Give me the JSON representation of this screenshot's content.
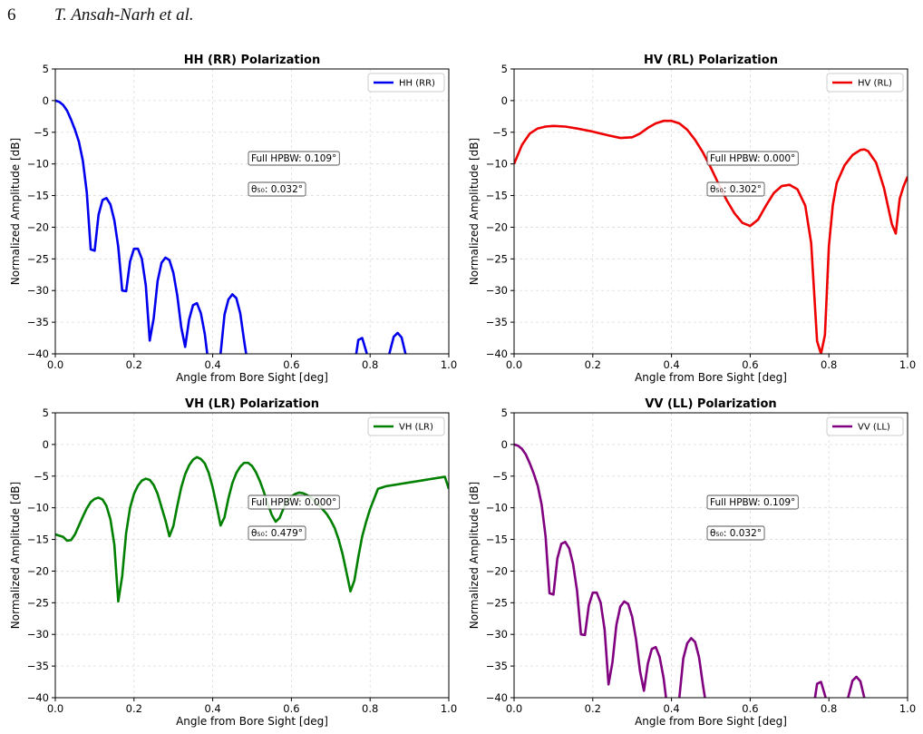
{
  "header": {
    "page_number": "6",
    "authors": "T. Ansah-Narh et al."
  },
  "chart_data": [
    {
      "type": "line",
      "title": "HH (RR) Polarization",
      "xlabel": "Angle from Bore Sight [deg]",
      "ylabel": "Normalized Amplitude [dB]",
      "xlim": [
        0,
        1
      ],
      "ylim": [
        -40,
        5
      ],
      "x_ticks": [
        "0.0",
        "0.2",
        "0.4",
        "0.6",
        "0.8",
        "1.0"
      ],
      "y_ticks": [
        "5",
        "0",
        "−5",
        "−10",
        "−15",
        "−20",
        "−25",
        "−30",
        "−35",
        "−40"
      ],
      "grid": true,
      "legend_position": "top-right",
      "color": "#0000ee",
      "annotations": [
        "Full HPBW: 0.109°",
        "θ₅₀: 0.032°"
      ],
      "series": [
        {
          "name": "HH (RR)",
          "x": [
            0,
            0.01,
            0.02,
            0.03,
            0.04,
            0.05,
            0.06,
            0.07,
            0.08,
            0.09,
            0.1,
            0.11,
            0.12,
            0.13,
            0.14,
            0.15,
            0.16,
            0.17,
            0.18,
            0.19,
            0.2,
            0.21,
            0.22,
            0.23,
            0.24,
            0.25,
            0.26,
            0.27,
            0.28,
            0.29,
            0.3,
            0.31,
            0.32,
            0.33,
            0.34,
            0.35,
            0.36,
            0.37,
            0.38,
            0.39,
            0.4,
            0.41,
            0.42,
            0.43,
            0.44,
            0.45,
            0.46,
            0.47,
            0.48,
            0.49,
            0.5,
            0.51,
            0.52,
            0.53,
            0.54,
            0.55,
            0.56,
            0.57,
            0.58,
            0.59,
            0.6,
            0.61,
            0.62,
            0.63,
            0.64,
            0.65,
            0.66,
            0.67,
            0.68,
            0.69,
            0.7,
            0.71,
            0.72,
            0.73,
            0.74,
            0.75,
            0.76,
            0.77,
            0.78,
            0.79,
            0.8,
            0.81,
            0.82,
            0.83,
            0.84,
            0.85,
            0.86,
            0.87,
            0.88,
            0.89
          ],
          "y": [
            0,
            -0.2,
            -0.7,
            -1.6,
            -3.0,
            -4.6,
            -6.5,
            -9.5,
            -14.5,
            -23.5,
            -23.7,
            -18.0,
            -15.7,
            -15.4,
            -16.4,
            -18.9,
            -23.1,
            -30.0,
            -30.1,
            -25.4,
            -23.4,
            -23.4,
            -25.0,
            -29.2,
            -37.9,
            -34.4,
            -28.5,
            -25.6,
            -24.8,
            -25.2,
            -27.2,
            -30.8,
            -35.8,
            -38.9,
            -34.6,
            -32.3,
            -32.0,
            -33.6,
            -36.9,
            -42.0,
            -42.0,
            -42.0,
            -40.0,
            -33.8,
            -31.4,
            -30.6,
            -31.2,
            -33.6,
            -38.0,
            -42.0,
            -42.0,
            -42.0,
            -42.0,
            -42.0,
            -42.0,
            -42.0,
            -42.0,
            -42.0,
            -42.0,
            -42.0,
            -42.0,
            -42.0,
            -42.0,
            -42.0,
            -42.0,
            -42.0,
            -42.0,
            -42.0,
            -42.0,
            -42.0,
            -42.0,
            -42.0,
            -42.0,
            -42.0,
            -42.0,
            -42.0,
            -42.0,
            -37.8,
            -37.5,
            -39.6,
            -42.0,
            -42.0,
            -42.0,
            -42.0,
            -42.0,
            -39.7,
            -37.3,
            -36.7,
            -37.4,
            -40.0
          ]
        }
      ]
    },
    {
      "type": "line",
      "title": "HV (RL) Polarization",
      "xlabel": "Angle from Bore Sight [deg]",
      "ylabel": "Normalized Amplitude [dB]",
      "xlim": [
        0,
        1
      ],
      "ylim": [
        -40,
        5
      ],
      "x_ticks": [
        "0.0",
        "0.2",
        "0.4",
        "0.6",
        "0.8",
        "1.0"
      ],
      "y_ticks": [
        "5",
        "0",
        "−5",
        "−10",
        "−15",
        "−20",
        "−25",
        "−30",
        "−35",
        "−40"
      ],
      "grid": true,
      "legend_position": "top-right",
      "color": "#ee0000",
      "annotations": [
        "Full HPBW: 0.000°",
        "θ₅₀: 0.302°"
      ],
      "series": [
        {
          "name": "HV (RL)",
          "x": [
            0,
            0.02,
            0.04,
            0.06,
            0.08,
            0.1,
            0.13,
            0.16,
            0.2,
            0.24,
            0.27,
            0.3,
            0.32,
            0.34,
            0.36,
            0.38,
            0.4,
            0.42,
            0.44,
            0.46,
            0.48,
            0.5,
            0.52,
            0.54,
            0.56,
            0.58,
            0.6,
            0.62,
            0.64,
            0.66,
            0.68,
            0.7,
            0.72,
            0.74,
            0.755,
            0.77,
            0.78,
            0.79,
            0.8,
            0.81,
            0.82,
            0.84,
            0.86,
            0.88,
            0.89,
            0.9,
            0.92,
            0.94,
            0.96,
            0.97,
            0.98,
            0.99,
            1.0
          ],
          "y": [
            -10,
            -7,
            -5.2,
            -4.4,
            -4.1,
            -4.0,
            -4.1,
            -4.4,
            -4.9,
            -5.5,
            -5.9,
            -5.8,
            -5.2,
            -4.3,
            -3.6,
            -3.2,
            -3.2,
            -3.6,
            -4.6,
            -6.2,
            -8.2,
            -10.6,
            -13.2,
            -15.7,
            -17.8,
            -19.3,
            -19.8,
            -18.8,
            -16.6,
            -14.6,
            -13.5,
            -13.3,
            -14.0,
            -16.6,
            -22.5,
            -38.0,
            -40.0,
            -37.0,
            -23.0,
            -16.5,
            -13.0,
            -10.2,
            -8.6,
            -7.8,
            -7.7,
            -8.0,
            -9.8,
            -13.8,
            -19.5,
            -21.0,
            -15.5,
            -13.5,
            -12.0
          ]
        }
      ]
    },
    {
      "type": "line",
      "title": "VH (LR) Polarization",
      "xlabel": "Angle from Bore Sight [deg]",
      "ylabel": "Normalized Amplitude [dB]",
      "xlim": [
        0,
        1
      ],
      "ylim": [
        -40,
        5
      ],
      "x_ticks": [
        "0.0",
        "0.2",
        "0.4",
        "0.6",
        "0.8",
        "1.0"
      ],
      "y_ticks": [
        "5",
        "0",
        "−5",
        "−10",
        "−15",
        "−20",
        "−25",
        "−30",
        "−35",
        "−40"
      ],
      "grid": true,
      "legend_position": "top-right",
      "color": "#008000",
      "annotations": [
        "Full HPBW: 0.000°",
        "θ₅₀: 0.479°"
      ],
      "series": [
        {
          "name": "VH (LR)",
          "x": [
            0,
            0.02,
            0.03,
            0.04,
            0.05,
            0.06,
            0.07,
            0.08,
            0.09,
            0.1,
            0.11,
            0.12,
            0.13,
            0.14,
            0.15,
            0.16,
            0.17,
            0.18,
            0.19,
            0.2,
            0.21,
            0.22,
            0.23,
            0.24,
            0.25,
            0.26,
            0.27,
            0.28,
            0.29,
            0.3,
            0.31,
            0.32,
            0.33,
            0.34,
            0.35,
            0.36,
            0.37,
            0.38,
            0.39,
            0.4,
            0.41,
            0.42,
            0.43,
            0.44,
            0.45,
            0.46,
            0.47,
            0.48,
            0.49,
            0.5,
            0.51,
            0.52,
            0.53,
            0.54,
            0.55,
            0.56,
            0.57,
            0.58,
            0.59,
            0.6,
            0.61,
            0.62,
            0.63,
            0.64,
            0.65,
            0.66,
            0.67,
            0.68,
            0.69,
            0.7,
            0.71,
            0.72,
            0.73,
            0.74,
            0.75,
            0.76,
            0.77,
            0.78,
            0.79,
            0.8,
            0.81,
            0.82,
            0.83,
            0.84,
            0.85,
            0.86,
            0.87,
            0.88,
            0.89,
            0.9,
            0.91,
            0.92,
            0.93,
            0.94,
            0.95,
            0.96,
            0.97,
            0.98,
            0.99,
            1.0
          ],
          "y": [
            -14.2,
            -14.6,
            -15.2,
            -15.1,
            -14.2,
            -12.8,
            -11.4,
            -10.1,
            -9.1,
            -8.6,
            -8.4,
            -8.7,
            -9.7,
            -11.8,
            -15.8,
            -24.8,
            -20.8,
            -14.0,
            -10.0,
            -7.8,
            -6.5,
            -5.7,
            -5.4,
            -5.6,
            -6.4,
            -7.8,
            -9.9,
            -12.0,
            -14.5,
            -12.9,
            -9.7,
            -6.8,
            -4.7,
            -3.3,
            -2.4,
            -2.0,
            -2.3,
            -3.0,
            -4.5,
            -6.8,
            -9.7,
            -12.8,
            -11.5,
            -8.5,
            -6.1,
            -4.5,
            -3.5,
            -2.9,
            -2.9,
            -3.4,
            -4.4,
            -5.8,
            -7.5,
            -9.4,
            -11.1,
            -12.2,
            -11.6,
            -10.1,
            -9.0,
            -8.2,
            -7.8,
            -7.6,
            -7.7,
            -8.0,
            -8.4,
            -9.0,
            -9.6,
            -10.3,
            -11.0,
            -12.0,
            -13.2,
            -15.0,
            -17.3,
            -20.2,
            -23.2,
            -21.5,
            -17.8,
            -14.5,
            -12.2,
            -10.2,
            -8.6,
            -7.0,
            -6.8,
            -6.6,
            -6.5,
            -6.4,
            -6.3,
            -6.2,
            -6.1,
            -6.0,
            -5.9,
            -5.8,
            -5.7,
            -5.6,
            -5.5,
            -5.4,
            -5.3,
            -5.2,
            -5.1,
            -7.0
          ]
        }
      ]
    },
    {
      "type": "line",
      "title": "VV (LL) Polarization",
      "xlabel": "Angle from Bore Sight [deg]",
      "ylabel": "Normalized Amplitude [dB]",
      "xlim": [
        0,
        1
      ],
      "ylim": [
        -40,
        5
      ],
      "x_ticks": [
        "0.0",
        "0.2",
        "0.4",
        "0.6",
        "0.8",
        "1.0"
      ],
      "y_ticks": [
        "5",
        "0",
        "−5",
        "−10",
        "−15",
        "−20",
        "−25",
        "−30",
        "−35",
        "−40"
      ],
      "grid": true,
      "legend_position": "top-right",
      "color": "#800080",
      "annotations": [
        "Full HPBW: 0.109°",
        "θ₅₀: 0.032°"
      ],
      "series": [
        {
          "name": "VV (LL)",
          "x": [
            0,
            0.01,
            0.02,
            0.03,
            0.04,
            0.05,
            0.06,
            0.07,
            0.08,
            0.09,
            0.1,
            0.11,
            0.12,
            0.13,
            0.14,
            0.15,
            0.16,
            0.17,
            0.18,
            0.19,
            0.2,
            0.21,
            0.22,
            0.23,
            0.24,
            0.25,
            0.26,
            0.27,
            0.28,
            0.29,
            0.3,
            0.31,
            0.32,
            0.33,
            0.34,
            0.35,
            0.36,
            0.37,
            0.38,
            0.39,
            0.4,
            0.41,
            0.42,
            0.43,
            0.44,
            0.45,
            0.46,
            0.47,
            0.48,
            0.49,
            0.5,
            0.51,
            0.52,
            0.53,
            0.54,
            0.55,
            0.56,
            0.57,
            0.58,
            0.59,
            0.6,
            0.61,
            0.62,
            0.63,
            0.64,
            0.65,
            0.66,
            0.67,
            0.68,
            0.69,
            0.7,
            0.71,
            0.72,
            0.73,
            0.74,
            0.75,
            0.76,
            0.77,
            0.78,
            0.79,
            0.8,
            0.81,
            0.82,
            0.83,
            0.84,
            0.85,
            0.86,
            0.87,
            0.88,
            0.89
          ],
          "y": [
            0,
            -0.2,
            -0.7,
            -1.6,
            -3.0,
            -4.6,
            -6.5,
            -9.5,
            -14.5,
            -23.5,
            -23.7,
            -18.0,
            -15.7,
            -15.4,
            -16.4,
            -18.9,
            -23.1,
            -30.0,
            -30.1,
            -25.4,
            -23.4,
            -23.4,
            -25.0,
            -29.2,
            -37.9,
            -34.4,
            -28.5,
            -25.6,
            -24.8,
            -25.2,
            -27.2,
            -30.8,
            -35.8,
            -38.9,
            -34.6,
            -32.3,
            -32.0,
            -33.6,
            -36.9,
            -42.0,
            -42.0,
            -42.0,
            -40.0,
            -33.8,
            -31.4,
            -30.6,
            -31.2,
            -33.6,
            -38.0,
            -42.0,
            -42.0,
            -42.0,
            -42.0,
            -42.0,
            -42.0,
            -42.0,
            -42.0,
            -42.0,
            -42.0,
            -42.0,
            -42.0,
            -42.0,
            -42.0,
            -42.0,
            -42.0,
            -42.0,
            -42.0,
            -42.0,
            -42.0,
            -42.0,
            -42.0,
            -42.0,
            -42.0,
            -42.0,
            -42.0,
            -42.0,
            -42.0,
            -37.8,
            -37.5,
            -39.6,
            -42.0,
            -42.0,
            -42.0,
            -42.0,
            -42.0,
            -39.7,
            -37.3,
            -36.7,
            -37.4,
            -40.0
          ]
        }
      ]
    }
  ]
}
